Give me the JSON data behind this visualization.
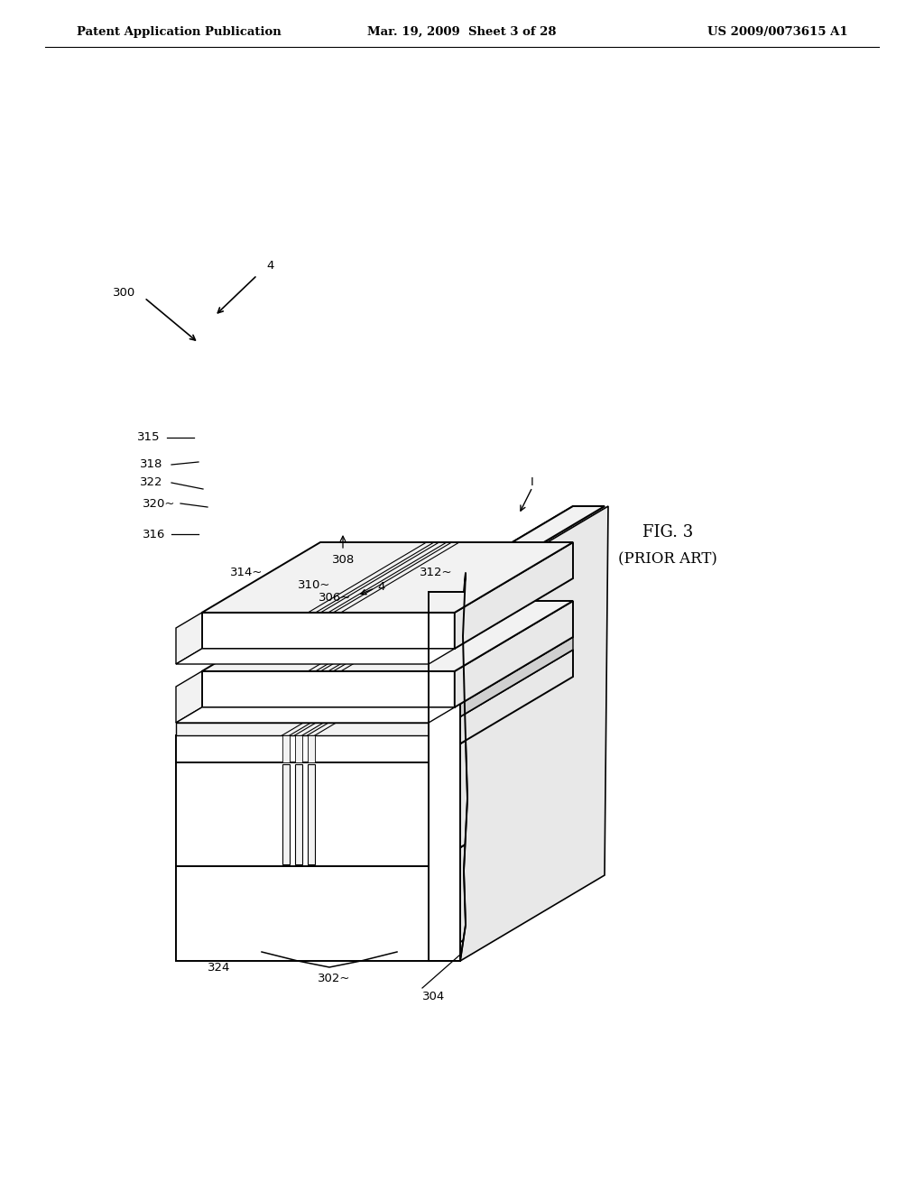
{
  "bg_color": "#ffffff",
  "line_color": "#000000",
  "header_left": "Patent Application Publication",
  "header_center": "Mar. 19, 2009  Sheet 3 of 28",
  "header_right": "US 2009/0073615 A1",
  "fig_label": "FIG. 3",
  "fig_sublabel": "(PRIOR ART)",
  "gray_face": "#e8e8e8",
  "light_gray": "#f2f2f2",
  "mid_gray": "#d0d0d0"
}
